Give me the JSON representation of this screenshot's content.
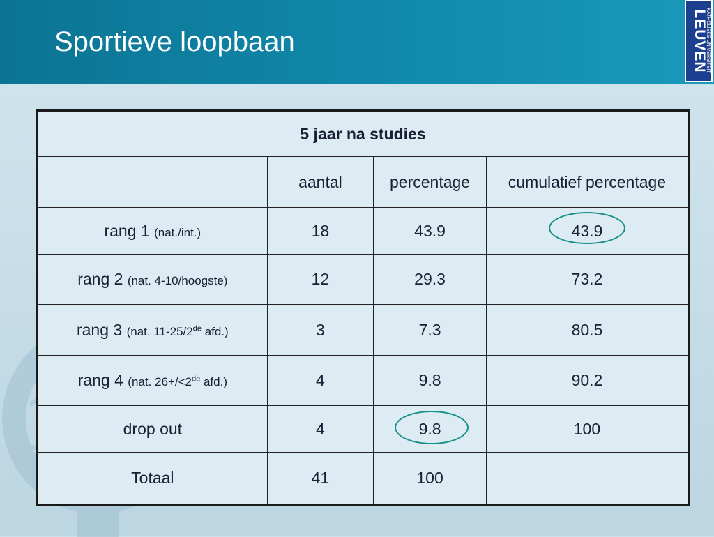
{
  "slide": {
    "title": "Sportieve loopbaan"
  },
  "logo": {
    "line1": "KATHOLIEKE UNIVERSITEIT",
    "line2": "LEUVEN"
  },
  "table": {
    "caption": "5 jaar na studies",
    "columns": [
      "",
      "aantal",
      "percentage",
      "cumulatief percentage"
    ],
    "rows": [
      {
        "label": "rang 1",
        "detail": "(nat./int.)",
        "detail_pre": "",
        "sup": "",
        "detail_post": "",
        "aantal": "18",
        "percentage": "43.9",
        "cumulatief": "43.9"
      },
      {
        "label": "rang 2",
        "detail": "(nat. 4-10/hoogste)",
        "detail_pre": "",
        "sup": "",
        "detail_post": "",
        "aantal": "12",
        "percentage": "29.3",
        "cumulatief": "73.2"
      },
      {
        "label": "rang 3",
        "detail": "",
        "detail_pre": "(nat. 11-25/2",
        "sup": "de",
        "detail_post": " afd.)",
        "aantal": "3",
        "percentage": "7.3",
        "cumulatief": "80.5"
      },
      {
        "label": "rang 4",
        "detail": "",
        "detail_pre": "(nat. 26+/<2",
        "sup": "de",
        "detail_post": " afd.)",
        "aantal": "4",
        "percentage": "9.8",
        "cumulatief": "90.2"
      },
      {
        "label": "drop out",
        "detail": "",
        "detail_pre": "",
        "sup": "",
        "detail_post": "",
        "aantal": "4",
        "percentage": "9.8",
        "cumulatief": "100"
      },
      {
        "label": "Totaal",
        "detail": "",
        "detail_pre": "",
        "sup": "",
        "detail_post": "",
        "aantal": "41",
        "percentage": "100",
        "cumulatief": ""
      }
    ]
  },
  "watermark_digits": "125",
  "colors": {
    "header": "#128bad",
    "highlight_circle": "#168f8a",
    "logo_blue": "#1c3f8f"
  }
}
